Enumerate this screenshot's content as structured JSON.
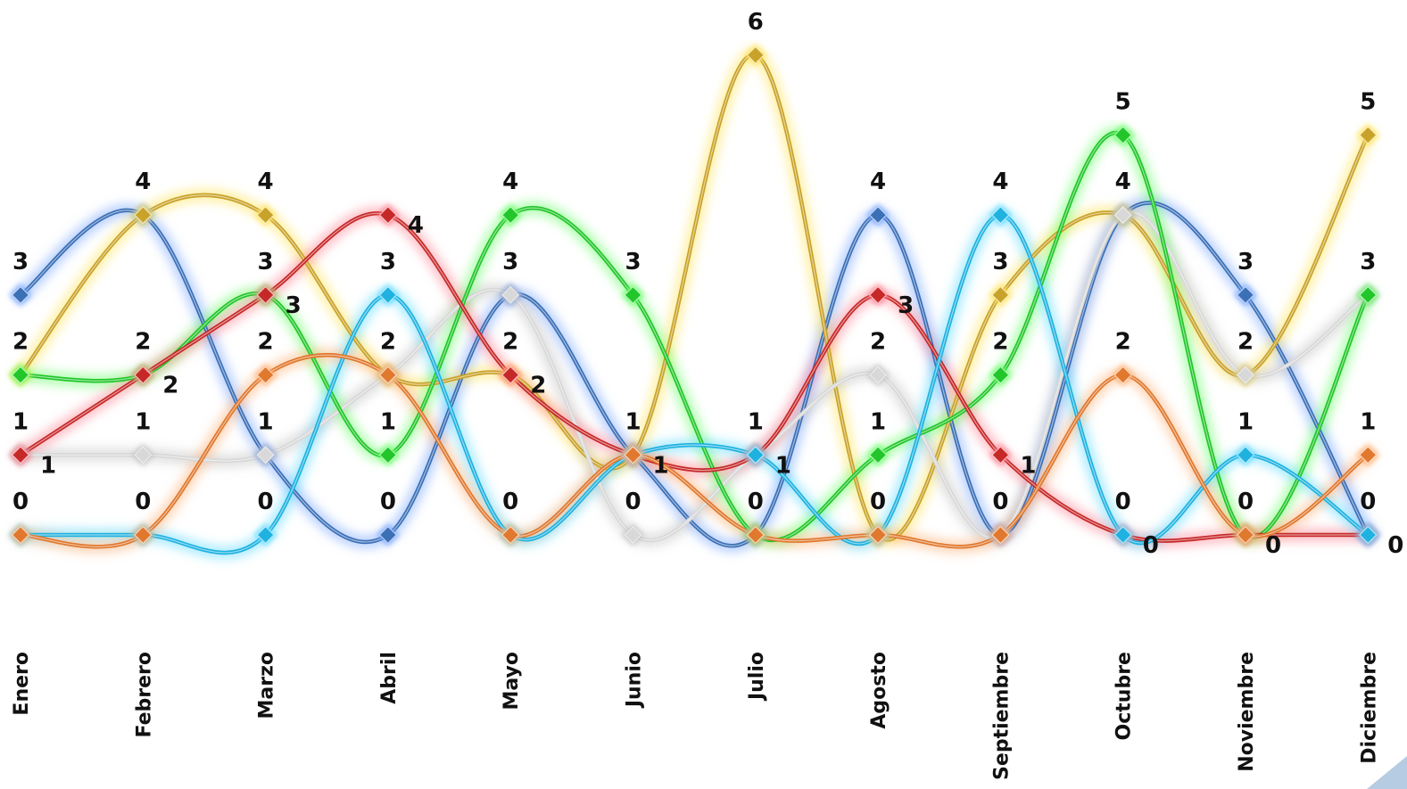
{
  "chart_data": {
    "type": "line",
    "categories": [
      "Enero",
      "Febrero",
      "Marzo",
      "Abril",
      "Mayo",
      "Junio",
      "Julio",
      "Agosto",
      "Septiembre",
      "Octubre",
      "Noviembre",
      "Diciembre"
    ],
    "ylim": [
      0,
      6
    ],
    "grid": false,
    "legend": "none",
    "series": [
      {
        "color": "#3b6fb6",
        "glow": "#6fa0ff",
        "values": [
          3,
          4,
          1,
          0,
          3,
          1,
          0,
          4,
          0,
          4,
          3,
          0
        ]
      },
      {
        "color": "#c9a22a",
        "glow": "#ffe14d",
        "values": [
          2,
          4,
          4,
          2,
          2,
          1,
          6,
          0,
          3,
          4,
          2,
          5
        ]
      },
      {
        "color": "#d8d8d8",
        "glow": "#bfbfbf",
        "values": [
          1,
          1,
          1,
          2,
          3,
          0,
          1,
          2,
          0,
          4,
          2,
          3
        ]
      },
      {
        "color": "#22c62a",
        "glow": "#5cff5c",
        "values": [
          2,
          2,
          3,
          1,
          4,
          3,
          0,
          1,
          2,
          5,
          0,
          3
        ]
      },
      {
        "color": "#c62828",
        "glow": "#ff7a8a",
        "values": [
          1,
          2,
          3,
          4,
          2,
          1,
          1,
          3,
          1,
          0,
          0,
          0
        ]
      },
      {
        "color": "#1fb2e0",
        "glow": "#58d8ff",
        "values": [
          0,
          0,
          0,
          3,
          0,
          1,
          1,
          0,
          4,
          0,
          1,
          0
        ]
      },
      {
        "color": "#e0782e",
        "glow": "#ffab6b",
        "values": [
          0,
          0,
          2,
          2,
          0,
          1,
          0,
          0,
          0,
          2,
          0,
          1
        ]
      }
    ],
    "value_labels": [
      {
        "text": "3",
        "cat": 0,
        "v": 3,
        "pos": "above"
      },
      {
        "text": "2",
        "cat": 0,
        "v": 2,
        "pos": "above"
      },
      {
        "text": "1",
        "cat": 0,
        "v": 1,
        "pos": "above"
      },
      {
        "text": "1",
        "cat": 0,
        "v": 1,
        "pos": "right"
      },
      {
        "text": "0",
        "cat": 0,
        "v": 0,
        "pos": "above"
      },
      {
        "text": "4",
        "cat": 1,
        "v": 4,
        "pos": "above"
      },
      {
        "text": "2",
        "cat": 1,
        "v": 2,
        "pos": "above"
      },
      {
        "text": "2",
        "cat": 1,
        "v": 2,
        "pos": "right"
      },
      {
        "text": "1",
        "cat": 1,
        "v": 1,
        "pos": "above"
      },
      {
        "text": "0",
        "cat": 1,
        "v": 0,
        "pos": "above"
      },
      {
        "text": "4",
        "cat": 2,
        "v": 4,
        "pos": "above"
      },
      {
        "text": "3",
        "cat": 2,
        "v": 3,
        "pos": "above"
      },
      {
        "text": "3",
        "cat": 2,
        "v": 3,
        "pos": "right"
      },
      {
        "text": "2",
        "cat": 2,
        "v": 2,
        "pos": "above"
      },
      {
        "text": "1",
        "cat": 2,
        "v": 1,
        "pos": "above"
      },
      {
        "text": "0",
        "cat": 2,
        "v": 0,
        "pos": "above"
      },
      {
        "text": "4",
        "cat": 3,
        "v": 4,
        "pos": "right"
      },
      {
        "text": "3",
        "cat": 3,
        "v": 3,
        "pos": "above"
      },
      {
        "text": "2",
        "cat": 3,
        "v": 2,
        "pos": "above"
      },
      {
        "text": "1",
        "cat": 3,
        "v": 1,
        "pos": "above"
      },
      {
        "text": "0",
        "cat": 3,
        "v": 0,
        "pos": "above"
      },
      {
        "text": "4",
        "cat": 4,
        "v": 4,
        "pos": "above"
      },
      {
        "text": "3",
        "cat": 4,
        "v": 3,
        "pos": "above"
      },
      {
        "text": "2",
        "cat": 4,
        "v": 2,
        "pos": "above"
      },
      {
        "text": "2",
        "cat": 4,
        "v": 2,
        "pos": "right"
      },
      {
        "text": "0",
        "cat": 4,
        "v": 0,
        "pos": "above"
      },
      {
        "text": "3",
        "cat": 5,
        "v": 3,
        "pos": "above"
      },
      {
        "text": "1",
        "cat": 5,
        "v": 1,
        "pos": "above"
      },
      {
        "text": "1",
        "cat": 5,
        "v": 1,
        "pos": "right"
      },
      {
        "text": "0",
        "cat": 5,
        "v": 0,
        "pos": "above"
      },
      {
        "text": "6",
        "cat": 6,
        "v": 6,
        "pos": "above"
      },
      {
        "text": "1",
        "cat": 6,
        "v": 1,
        "pos": "above"
      },
      {
        "text": "1",
        "cat": 6,
        "v": 1,
        "pos": "right"
      },
      {
        "text": "0",
        "cat": 6,
        "v": 0,
        "pos": "above"
      },
      {
        "text": "4",
        "cat": 7,
        "v": 4,
        "pos": "above"
      },
      {
        "text": "3",
        "cat": 7,
        "v": 3,
        "pos": "right"
      },
      {
        "text": "2",
        "cat": 7,
        "v": 2,
        "pos": "above"
      },
      {
        "text": "1",
        "cat": 7,
        "v": 1,
        "pos": "above"
      },
      {
        "text": "0",
        "cat": 7,
        "v": 0,
        "pos": "above"
      },
      {
        "text": "4",
        "cat": 8,
        "v": 4,
        "pos": "above"
      },
      {
        "text": "3",
        "cat": 8,
        "v": 3,
        "pos": "above"
      },
      {
        "text": "2",
        "cat": 8,
        "v": 2,
        "pos": "above"
      },
      {
        "text": "1",
        "cat": 8,
        "v": 1,
        "pos": "right"
      },
      {
        "text": "0",
        "cat": 8,
        "v": 0,
        "pos": "above"
      },
      {
        "text": "5",
        "cat": 9,
        "v": 5,
        "pos": "above"
      },
      {
        "text": "4",
        "cat": 9,
        "v": 4,
        "pos": "above"
      },
      {
        "text": "2",
        "cat": 9,
        "v": 2,
        "pos": "above"
      },
      {
        "text": "0",
        "cat": 9,
        "v": 0,
        "pos": "above"
      },
      {
        "text": "0",
        "cat": 9,
        "v": 0,
        "pos": "right"
      },
      {
        "text": "3",
        "cat": 10,
        "v": 3,
        "pos": "above"
      },
      {
        "text": "2",
        "cat": 10,
        "v": 2,
        "pos": "above"
      },
      {
        "text": "1",
        "cat": 10,
        "v": 1,
        "pos": "above"
      },
      {
        "text": "0",
        "cat": 10,
        "v": 0,
        "pos": "above"
      },
      {
        "text": "0",
        "cat": 10,
        "v": 0,
        "pos": "right"
      },
      {
        "text": "5",
        "cat": 11,
        "v": 5,
        "pos": "above"
      },
      {
        "text": "3",
        "cat": 11,
        "v": 3,
        "pos": "above"
      },
      {
        "text": "1",
        "cat": 11,
        "v": 1,
        "pos": "above"
      },
      {
        "text": "0",
        "cat": 11,
        "v": 0,
        "pos": "above"
      },
      {
        "text": "0",
        "cat": 11,
        "v": 0,
        "pos": "right"
      }
    ]
  }
}
